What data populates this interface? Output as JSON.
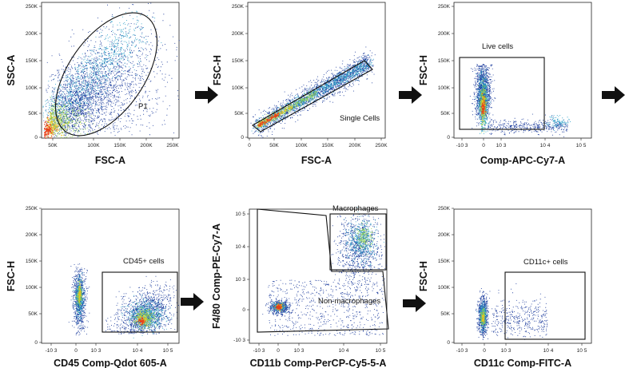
{
  "figure": "Flow cytometry gating strategy",
  "panels": [
    {
      "id": "p1",
      "xlabel": "FSC-A",
      "ylabel": "SSC-A",
      "xticks": [
        "50K",
        "100K",
        "150K",
        "200K",
        "250K"
      ],
      "yticks": [
        "0",
        "50K",
        "100K",
        "150K",
        "200K",
        "250K"
      ],
      "gate_label": "P1"
    },
    {
      "id": "p2",
      "xlabel": "FSC-A",
      "ylabel": "FSC-H",
      "xticks": [
        "0",
        "50K",
        "100K",
        "150K",
        "200K",
        "250K"
      ],
      "yticks": [
        "0",
        "50K",
        "100K",
        "150K",
        "200K",
        "250K"
      ],
      "gate_label": "Single Cells"
    },
    {
      "id": "p3",
      "xlabel": "Comp-APC-Cy7-A",
      "ylabel": "FSC-H",
      "xticks": [
        "-10 3",
        "0",
        "10 3",
        "10 4",
        "10 5"
      ],
      "yticks": [
        "0",
        "50K",
        "100K",
        "150K",
        "200K",
        "250K"
      ],
      "gate_label": "Live cells"
    },
    {
      "id": "p4",
      "xlabel": "CD45 Comp-Qdot 605-A",
      "ylabel": "FSC-H",
      "xticks": [
        "-10 3",
        "0",
        "10 3",
        "10 4",
        "10 5"
      ],
      "yticks": [
        "0",
        "50K",
        "100K",
        "150K",
        "200K",
        "250K"
      ],
      "gate_label": "CD45+ cells"
    },
    {
      "id": "p5",
      "xlabel": "CD11b Comp-PerCP-Cy5-5-A",
      "ylabel": "F4/80 Comp-PE-Cy7-A",
      "xticks": [
        "-10 3",
        "0",
        "10 3",
        "10 4",
        "10 5"
      ],
      "yticks": [
        "-10 3",
        "0",
        "10 3",
        "10 4",
        "10 5"
      ],
      "gate_label": "Macrophages",
      "gate_label2": "Non-macrophages"
    },
    {
      "id": "p6",
      "xlabel": "CD11c Comp-FITC-A",
      "ylabel": "FSC-H",
      "xticks": [
        "-10 3",
        "0",
        "10 3",
        "10 4",
        "10 5"
      ],
      "yticks": [
        "0",
        "50K",
        "100K",
        "150K",
        "200K",
        "250K"
      ],
      "gate_label": "CD11c+ cells"
    }
  ],
  "arrow_icon": "right-arrow-icon",
  "colors": {
    "low": "#1a3a9c",
    "mid": "#2aa0c8",
    "hi1": "#8fd04a",
    "hi2": "#f2c318",
    "peak": "#e8401a"
  }
}
